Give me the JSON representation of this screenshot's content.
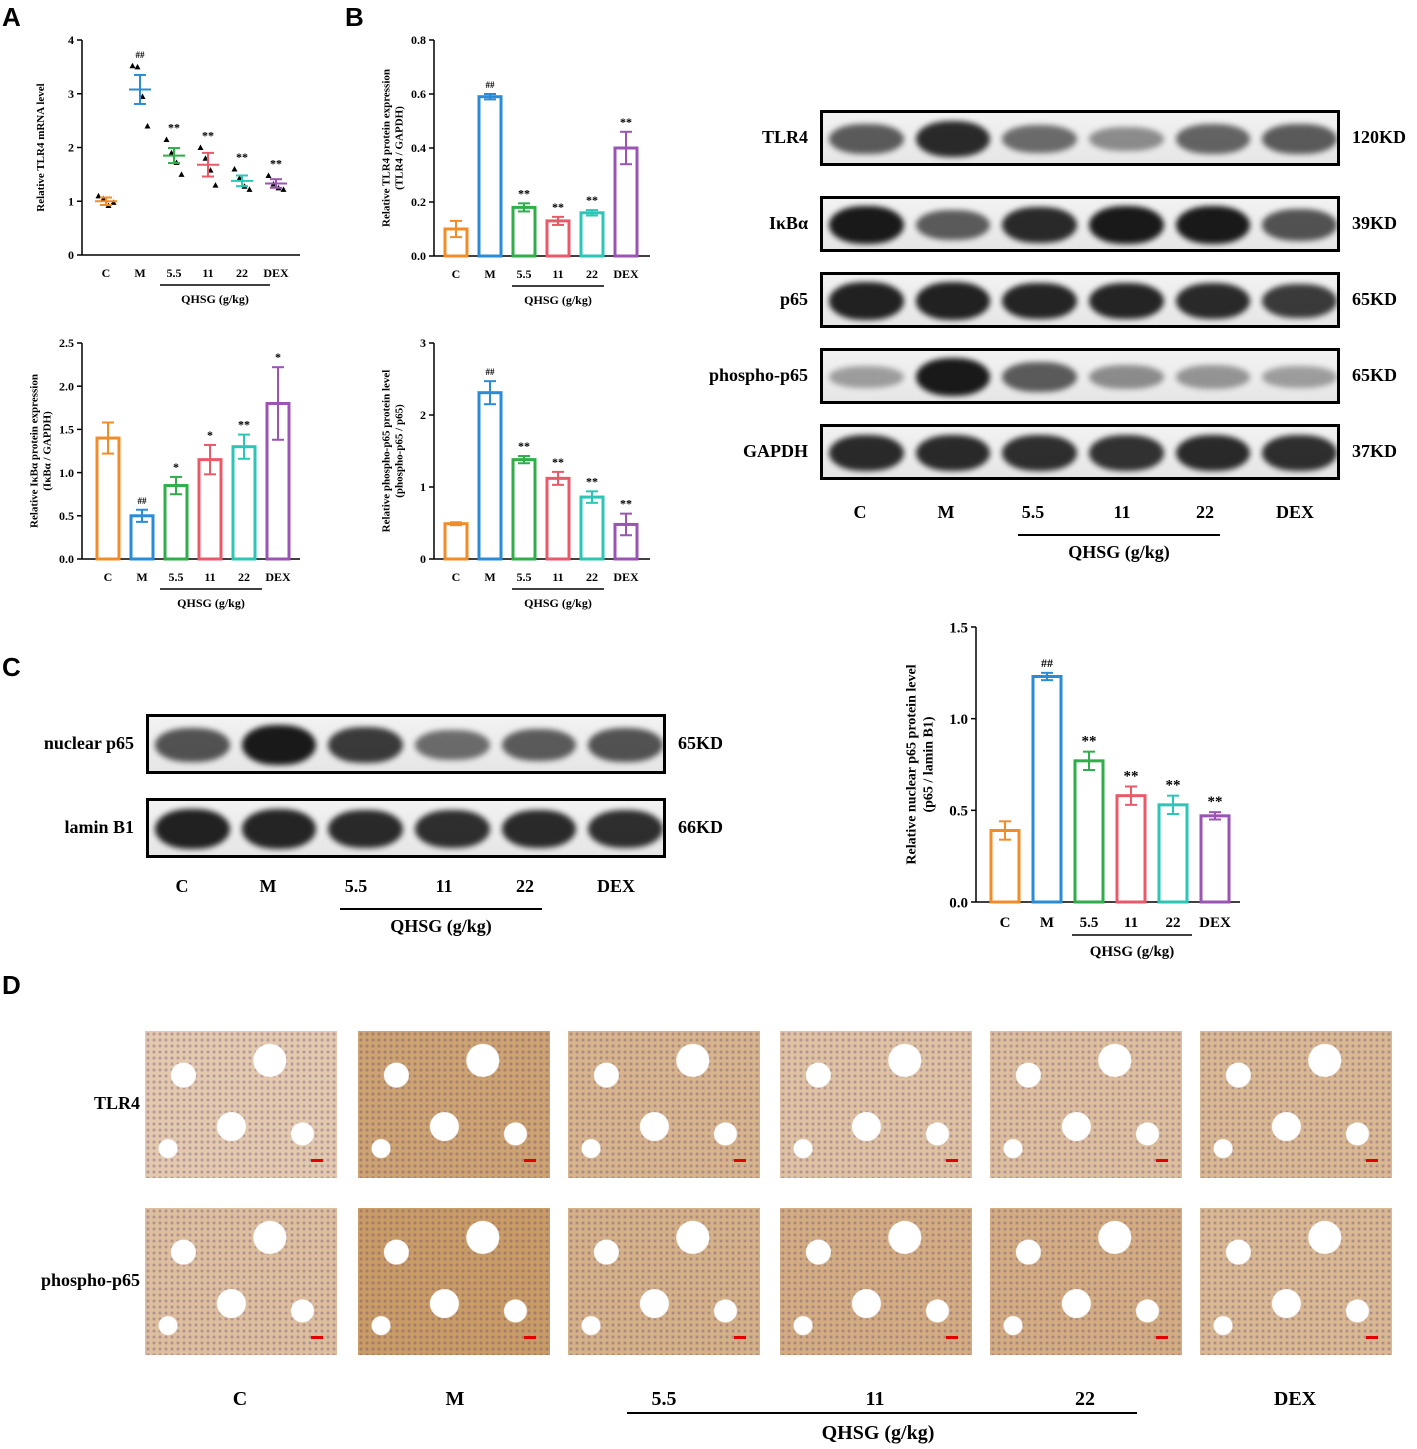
{
  "panels": {
    "A": "A",
    "B": "B",
    "C": "C",
    "D": "D"
  },
  "group_label": "QHSG (g/kg)",
  "lanes": [
    "C",
    "M",
    "5.5",
    "11",
    "22",
    "DEX"
  ],
  "colors": {
    "C": "#f28c28",
    "M": "#2a8bd6",
    "5.5": "#2fae4a",
    "11": "#e85a6a",
    "22": "#2cc6b6",
    "DEX": "#9a55b4"
  },
  "blots_B": {
    "rows": [
      {
        "name": "TLR4",
        "kd": "120KD"
      },
      {
        "name": "IκBα",
        "kd": "39KD"
      },
      {
        "name": "p65",
        "kd": "65KD"
      },
      {
        "name": "phospho-p65",
        "kd": "65KD"
      },
      {
        "name": "GAPDH",
        "kd": "37KD"
      }
    ]
  },
  "blots_C": {
    "rows": [
      {
        "name": "nuclear p65",
        "kd": "65KD"
      },
      {
        "name": "lamin B1",
        "kd": "66KD"
      }
    ]
  },
  "ihc_D": {
    "rows": [
      "TLR4",
      "phospho-p65"
    ]
  },
  "chart_data": [
    {
      "id": "A1",
      "type": "scatter",
      "ylabel": "Relative TLR4 mRNA level",
      "categories": [
        "C",
        "M",
        "5.5",
        "11",
        "22",
        "DEX"
      ],
      "ylim": [
        0,
        4
      ],
      "yticks": [
        "0",
        "1",
        "2",
        "3",
        "4"
      ],
      "mean": [
        1.0,
        3.08,
        1.85,
        1.68,
        1.38,
        1.33
      ],
      "sem": [
        0.07,
        0.27,
        0.14,
        0.22,
        0.1,
        0.08
      ],
      "points": [
        [
          1.1,
          1.05,
          0.92,
          0.98
        ],
        [
          3.52,
          3.5,
          2.95,
          2.4
        ],
        [
          2.15,
          1.9,
          1.72,
          1.5
        ],
        [
          2.0,
          1.8,
          1.58,
          1.3
        ],
        [
          1.6,
          1.43,
          1.28,
          1.22
        ],
        [
          1.48,
          1.32,
          1.25,
          1.22
        ]
      ],
      "annotations": [
        "",
        "##",
        "**",
        "**",
        "**",
        "**"
      ]
    },
    {
      "id": "A2",
      "type": "bar",
      "ylabel": "Relative IκBα protein expression (IκBα / GAPDH)",
      "categories": [
        "C",
        "M",
        "5.5",
        "11",
        "22",
        "DEX"
      ],
      "ylim": [
        0,
        2.5
      ],
      "yticks": [
        "0.0",
        "0.5",
        "1.0",
        "1.5",
        "2.0",
        "2.5"
      ],
      "values": [
        1.4,
        0.5,
        0.85,
        1.15,
        1.3,
        1.8
      ],
      "errors": [
        0.18,
        0.07,
        0.1,
        0.17,
        0.14,
        0.42
      ],
      "annotations": [
        "",
        "##",
        "*",
        "*",
        "**",
        "*"
      ]
    },
    {
      "id": "B1",
      "type": "bar",
      "ylabel": "Relative TLR4 protein expression (TLR4 / GAPDH)",
      "categories": [
        "C",
        "M",
        "5.5",
        "11",
        "22",
        "DEX"
      ],
      "ylim": [
        0,
        0.8
      ],
      "yticks": [
        "0.0",
        "0.2",
        "0.4",
        "0.6",
        "0.8"
      ],
      "values": [
        0.1,
        0.59,
        0.18,
        0.13,
        0.16,
        0.4
      ],
      "errors": [
        0.03,
        0.01,
        0.015,
        0.015,
        0.01,
        0.06
      ],
      "annotations": [
        "",
        "##",
        "**",
        "**",
        "**",
        "**"
      ]
    },
    {
      "id": "B2",
      "type": "bar",
      "ylabel": "Relative phospho-p65 protein level (phospho-p65 / p65)",
      "categories": [
        "C",
        "M",
        "5.5",
        "11",
        "22",
        "DEX"
      ],
      "ylim": [
        0,
        3
      ],
      "yticks": [
        "0",
        "1",
        "2",
        "3"
      ],
      "values": [
        0.49,
        2.31,
        1.38,
        1.12,
        0.86,
        0.48
      ],
      "errors": [
        0.02,
        0.16,
        0.05,
        0.09,
        0.08,
        0.15
      ],
      "annotations": [
        "",
        "##",
        "**",
        "**",
        "**",
        "**"
      ]
    },
    {
      "id": "C1",
      "type": "bar",
      "ylabel": "Relative nuclear p65 protein level (p65 / lamin B1)",
      "categories": [
        "C",
        "M",
        "5.5",
        "11",
        "22",
        "DEX"
      ],
      "ylim": [
        0,
        1.5
      ],
      "yticks": [
        "0.0",
        "0.5",
        "1.0",
        "1.5"
      ],
      "values": [
        0.39,
        1.23,
        0.77,
        0.58,
        0.53,
        0.47
      ],
      "errors": [
        0.05,
        0.02,
        0.05,
        0.05,
        0.05,
        0.02
      ],
      "annotations": [
        "",
        "##",
        "**",
        "**",
        "**",
        "**"
      ]
    }
  ]
}
